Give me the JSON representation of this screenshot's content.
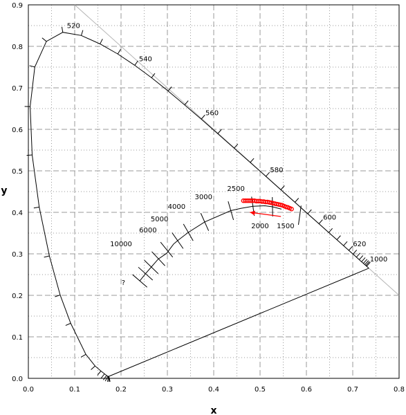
{
  "chart_data": {
    "type": "scatter",
    "title": "",
    "xlabel": "x",
    "ylabel": "y",
    "xlim": [
      0.0,
      0.8
    ],
    "ylim": [
      0.0,
      0.9
    ],
    "x_ticks": [
      "0.0",
      "0.1",
      "0.2",
      "0.3",
      "0.4",
      "0.5",
      "0.6",
      "0.7",
      "0.8"
    ],
    "y_ticks": [
      "0.0",
      "0.1",
      "0.2",
      "0.3",
      "0.4",
      "0.5",
      "0.6",
      "0.7",
      "0.8",
      "0.9"
    ],
    "grid": true,
    "spectral_locus": [
      [
        0.1741,
        0.005
      ],
      [
        0.1738,
        0.0049
      ],
      [
        0.1733,
        0.0048
      ],
      [
        0.1726,
        0.0048
      ],
      [
        0.1714,
        0.0051
      ],
      [
        0.1689,
        0.0069
      ],
      [
        0.1644,
        0.0109
      ],
      [
        0.1566,
        0.0177
      ],
      [
        0.144,
        0.0297
      ],
      [
        0.1241,
        0.0578
      ],
      [
        0.0913,
        0.1327
      ],
      [
        0.0687,
        0.2007
      ],
      [
        0.0454,
        0.295
      ],
      [
        0.0235,
        0.4127
      ],
      [
        0.0082,
        0.5384
      ],
      [
        0.0039,
        0.6548
      ],
      [
        0.0139,
        0.7502
      ],
      [
        0.0389,
        0.812
      ],
      [
        0.0743,
        0.8338
      ],
      [
        0.1142,
        0.8262
      ],
      [
        0.1547,
        0.8059
      ],
      [
        0.1929,
        0.7816
      ],
      [
        0.2296,
        0.7543
      ],
      [
        0.2658,
        0.7243
      ],
      [
        0.3016,
        0.6923
      ],
      [
        0.3373,
        0.6589
      ],
      [
        0.3731,
        0.6245
      ],
      [
        0.4087,
        0.5896
      ],
      [
        0.4441,
        0.5547
      ],
      [
        0.4788,
        0.5202
      ],
      [
        0.5125,
        0.4866
      ],
      [
        0.5448,
        0.4544
      ],
      [
        0.5752,
        0.4242
      ],
      [
        0.6029,
        0.3965
      ],
      [
        0.627,
        0.3725
      ],
      [
        0.6482,
        0.3514
      ],
      [
        0.6658,
        0.334
      ],
      [
        0.6801,
        0.3197
      ],
      [
        0.6915,
        0.3083
      ],
      [
        0.7006,
        0.2993
      ],
      [
        0.7079,
        0.292
      ],
      [
        0.714,
        0.2859
      ],
      [
        0.719,
        0.2809
      ],
      [
        0.723,
        0.277
      ],
      [
        0.726,
        0.274
      ],
      [
        0.7283,
        0.2717
      ],
      [
        0.73,
        0.27
      ],
      [
        0.7347,
        0.2653
      ]
    ],
    "purple_line": [
      [
        0.7347,
        0.2653
      ],
      [
        0.1741,
        0.005
      ]
    ],
    "diagonal_line": [
      [
        0.1,
        0.9
      ],
      [
        0.8,
        0.2
      ]
    ],
    "wavelength_labels": [
      {
        "text": "520",
        "x": 0.0743,
        "y": 0.8338
      },
      {
        "text": "540",
        "x": 0.2296,
        "y": 0.7543
      },
      {
        "text": "560",
        "x": 0.3731,
        "y": 0.6245
      },
      {
        "text": "580",
        "x": 0.5125,
        "y": 0.4866
      },
      {
        "text": "600",
        "x": 0.627,
        "y": 0.3725
      },
      {
        "text": "620",
        "x": 0.6915,
        "y": 0.3083
      },
      {
        "text": "1000",
        "x": 0.728,
        "y": 0.2717
      }
    ],
    "planckian_locus": [
      [
        0.2405,
        0.2348
      ],
      [
        0.2528,
        0.2522
      ],
      [
        0.2653,
        0.2683
      ],
      [
        0.28,
        0.2871
      ],
      [
        0.2985,
        0.3013
      ],
      [
        0.3135,
        0.3236
      ],
      [
        0.3221,
        0.3318
      ],
      [
        0.3451,
        0.3516
      ],
      [
        0.3805,
        0.3768
      ],
      [
        0.4369,
        0.4041
      ],
      [
        0.4585,
        0.4097
      ],
      [
        0.4846,
        0.4146
      ],
      [
        0.5104,
        0.4159
      ],
      [
        0.5268,
        0.4133
      ],
      [
        0.5462,
        0.4077
      ]
    ],
    "isotherms": [
      {
        "x": 0.2405,
        "y": 0.2348,
        "angle": -41
      },
      {
        "x": 0.2528,
        "y": 0.2522,
        "angle": -42
      },
      {
        "x": 0.2653,
        "y": 0.2683,
        "angle": -44
      },
      {
        "x": 0.2806,
        "y": 0.2883,
        "angle": -47
      },
      {
        "x": 0.2984,
        "y": 0.3101,
        "angle": -51
      },
      {
        "x": 0.3221,
        "y": 0.3318,
        "angle": -55
      },
      {
        "x": 0.3451,
        "y": 0.3516,
        "angle": -60
      },
      {
        "x": 0.3805,
        "y": 0.3768,
        "angle": -66
      },
      {
        "x": 0.4369,
        "y": 0.4041,
        "angle": -74
      },
      {
        "x": 0.4846,
        "y": 0.4146,
        "angle": -82
      },
      {
        "x": 0.5268,
        "y": 0.4133,
        "angle": -89
      },
      {
        "x": 0.5857,
        "y": 0.3931,
        "angle": -98
      }
    ],
    "cct_labels": [
      {
        "text": "?",
        "x": 0.205,
        "y": 0.225
      },
      {
        "text": "10000",
        "x": 0.2,
        "y": 0.318
      },
      {
        "text": "6000",
        "x": 0.258,
        "y": 0.352
      },
      {
        "text": "5000",
        "x": 0.283,
        "y": 0.378
      },
      {
        "text": "4000",
        "x": 0.32,
        "y": 0.408
      },
      {
        "text": "3000",
        "x": 0.378,
        "y": 0.432
      },
      {
        "text": "2500",
        "x": 0.448,
        "y": 0.452
      },
      {
        "text": "2000",
        "x": 0.5,
        "y": 0.362
      },
      {
        "text": "1500",
        "x": 0.555,
        "y": 0.362
      }
    ],
    "red_points": [
      [
        0.464,
        0.428
      ],
      [
        0.468,
        0.428
      ],
      [
        0.472,
        0.428
      ],
      [
        0.476,
        0.428
      ],
      [
        0.48,
        0.428
      ],
      [
        0.484,
        0.428
      ],
      [
        0.488,
        0.428
      ],
      [
        0.492,
        0.427
      ],
      [
        0.496,
        0.427
      ],
      [
        0.5,
        0.427
      ],
      [
        0.504,
        0.426
      ],
      [
        0.508,
        0.426
      ],
      [
        0.512,
        0.425
      ],
      [
        0.516,
        0.425
      ],
      [
        0.52,
        0.424
      ],
      [
        0.524,
        0.423
      ],
      [
        0.528,
        0.422
      ],
      [
        0.532,
        0.421
      ],
      [
        0.536,
        0.42
      ],
      [
        0.54,
        0.419
      ],
      [
        0.544,
        0.418
      ],
      [
        0.548,
        0.417
      ],
      [
        0.552,
        0.415
      ],
      [
        0.556,
        0.413
      ],
      [
        0.56,
        0.412
      ],
      [
        0.564,
        0.41
      ],
      [
        0.568,
        0.408
      ]
    ],
    "red_arrow": [
      [
        0.545,
        0.39
      ],
      [
        0.478,
        0.4
      ]
    ],
    "colors": {
      "locus": "#000000",
      "grid": "#999999",
      "diagonal": "#b4b4b4",
      "red": "#ff0000"
    }
  }
}
